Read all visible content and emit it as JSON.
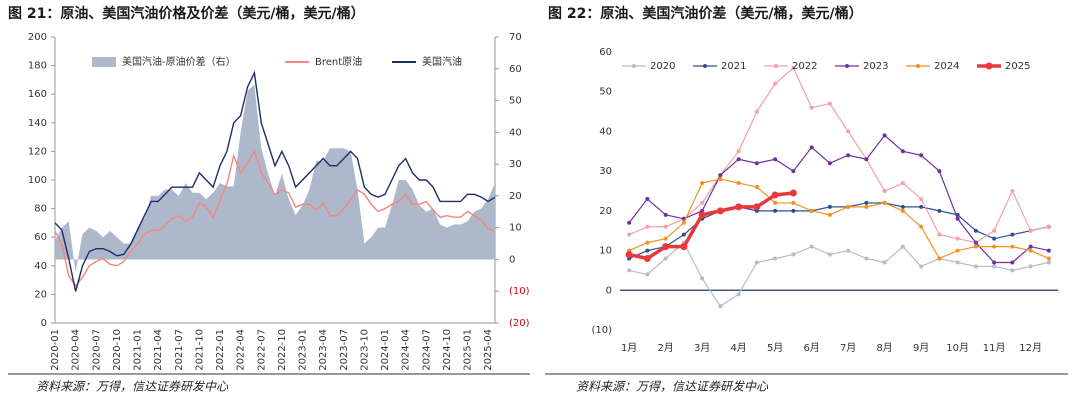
{
  "chart_data": [
    {
      "type": "line",
      "title": "图 21：原油、美国汽油价格及价差（美元/桶，美元/桶）",
      "source": "资料来源：万得，信达证券研发中心",
      "categories": [
        "2020-01",
        null,
        null,
        "2020-04",
        null,
        null,
        "2020-07",
        null,
        null,
        "2020-10",
        null,
        null,
        "2021-01",
        null,
        null,
        "2021-04",
        null,
        null,
        "2021-07",
        null,
        null,
        "2021-10",
        null,
        null,
        "2022-01",
        null,
        null,
        "2022-04",
        null,
        null,
        "2022-07",
        null,
        null,
        "2022-10",
        null,
        null,
        "2023-01",
        null,
        null,
        "2023-04",
        null,
        null,
        "2023-07",
        null,
        null,
        "2023-10",
        null,
        null,
        "2024-01",
        null,
        null,
        "2024-04",
        null,
        null,
        "2024-07",
        null,
        null,
        "2024-10",
        null,
        null,
        "2025-01",
        null,
        null,
        "2025-04",
        null
      ],
      "series": [
        {
          "name": "美国汽油-原油价差（右）",
          "type": "area",
          "axis": "y2",
          "color": "#adb9ca",
          "values": [
            6,
            10,
            12,
            -4,
            8,
            10,
            9,
            7,
            9,
            7,
            5,
            5,
            10,
            13,
            20,
            20,
            22,
            22,
            20,
            24,
            21,
            21,
            19,
            21,
            24,
            23,
            23,
            40,
            53,
            55,
            35,
            27,
            20,
            27,
            19,
            14,
            17,
            22,
            31,
            31,
            35,
            35,
            35,
            34,
            22,
            5,
            7,
            10,
            10,
            17,
            25,
            25,
            22,
            17,
            15,
            16,
            11,
            10,
            11,
            11,
            12,
            15,
            16,
            19,
            24
          ]
        },
        {
          "name": "Brent原油",
          "type": "line",
          "color": "#f4857f",
          "values": [
            64,
            55,
            33,
            26,
            32,
            40,
            43,
            45,
            41,
            40,
            43,
            50,
            55,
            62,
            65,
            65,
            68,
            73,
            75,
            71,
            74,
            84,
            81,
            74,
            86,
            97,
            117,
            105,
            112,
            120,
            105,
            98,
            90,
            93,
            91,
            81,
            83,
            83,
            79,
            84,
            75,
            75,
            80,
            86,
            93,
            90,
            83,
            78,
            80,
            83,
            85,
            90,
            83,
            83,
            85,
            79,
            74,
            75,
            74,
            74,
            78,
            75,
            72,
            66,
            64
          ]
        },
        {
          "name": "美国汽油",
          "type": "line",
          "color": "#1f2d6b",
          "values": [
            70,
            65,
            45,
            22,
            40,
            50,
            52,
            52,
            50,
            47,
            48,
            55,
            65,
            75,
            85,
            85,
            90,
            95,
            95,
            95,
            95,
            105,
            100,
            95,
            110,
            120,
            140,
            145,
            165,
            175,
            140,
            125,
            110,
            120,
            110,
            95,
            100,
            105,
            110,
            115,
            110,
            110,
            115,
            120,
            115,
            95,
            90,
            88,
            90,
            100,
            110,
            115,
            105,
            100,
            100,
            95,
            85,
            85,
            85,
            85,
            90,
            90,
            88,
            85,
            88
          ]
        }
      ],
      "ylim": [
        0,
        200
      ],
      "yticks": [
        0,
        20,
        40,
        60,
        80,
        100,
        120,
        140,
        160,
        180,
        200
      ],
      "y2lim": [
        -20,
        70
      ],
      "y2ticks": [
        {
          "value": -20,
          "label": "(20)"
        },
        {
          "value": -10,
          "label": "(10)"
        },
        0,
        10,
        20,
        30,
        40,
        50,
        60,
        70
      ]
    },
    {
      "type": "line",
      "title": "图 22：原油、美国汽油价差（美元/桶，美元/桶）",
      "source": "资料来源：万得，信达证券研发中心",
      "categories": [
        "1月",
        null,
        "2月",
        null,
        "3月",
        null,
        "4月",
        null,
        "5月",
        null,
        "6月",
        null,
        "7月",
        null,
        "8月",
        null,
        "9月",
        null,
        "10月",
        null,
        "11月",
        null,
        "12月",
        null
      ],
      "series": [
        {
          "name": "2020",
          "color": "#b4bccb",
          "values": [
            5,
            4,
            8,
            12,
            3,
            -4,
            -1,
            7,
            8,
            9,
            11,
            9,
            10,
            8,
            7,
            11,
            6,
            8,
            7,
            6,
            6,
            5,
            6,
            7
          ]
        },
        {
          "name": "2021",
          "color": "#2f4f8f",
          "values": [
            8,
            10,
            11,
            14,
            18,
            20,
            21,
            20,
            20,
            20,
            20,
            21,
            21,
            22,
            22,
            21,
            21,
            20,
            19,
            15,
            13,
            14,
            15,
            16
          ]
        },
        {
          "name": "2022",
          "color": "#f4a0a8",
          "values": [
            14,
            16,
            16,
            18,
            22,
            29,
            35,
            45,
            52,
            56,
            46,
            47,
            40,
            33,
            25,
            27,
            23,
            14,
            13,
            12,
            15,
            25,
            15,
            16
          ]
        },
        {
          "name": "2023",
          "color": "#7030a0",
          "values": [
            17,
            23,
            19,
            18,
            20,
            29,
            33,
            32,
            33,
            30,
            36,
            32,
            34,
            33,
            39,
            35,
            34,
            30,
            18,
            12,
            7,
            7,
            11,
            10
          ]
        },
        {
          "name": "2024",
          "color": "#f5921e",
          "values": [
            10,
            12,
            13,
            17,
            27,
            28,
            27,
            26,
            22,
            22,
            20,
            19,
            21,
            21,
            22,
            20,
            16,
            8,
            10,
            11,
            11,
            11,
            10,
            8
          ]
        },
        {
          "name": "2025",
          "color": "#e8383d",
          "values": [
            9,
            8,
            11,
            11,
            19,
            20,
            21,
            21,
            24,
            24.5,
            null,
            null,
            null,
            null,
            null,
            null,
            null,
            null,
            null,
            null,
            null,
            null,
            null,
            null
          ]
        }
      ],
      "ylim": [
        -10,
        60
      ],
      "yticks": [
        {
          "value": -10,
          "label": "(10)"
        },
        0,
        10,
        20,
        30,
        40,
        50,
        60
      ]
    }
  ]
}
